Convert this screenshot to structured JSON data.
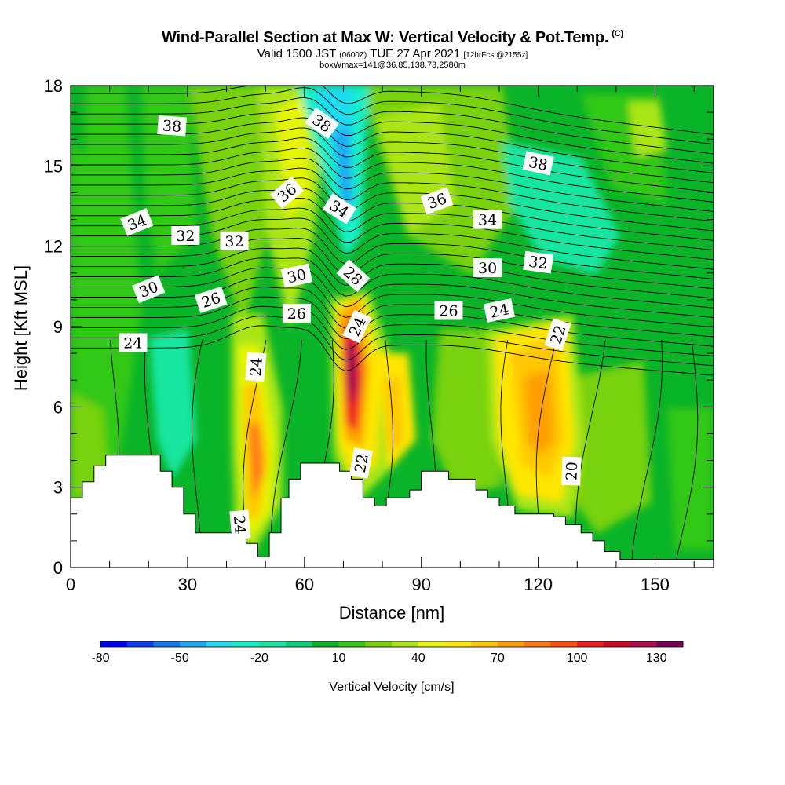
{
  "header": {
    "title": "Wind-Parallel Section at Max W: Vertical Velocity & Pot.Temp.",
    "copyright": "(C)",
    "valid_prefix": "Valid 1500 JST",
    "valid_utc": "(0600Z)",
    "valid_date": "TUE 27 Apr 2021",
    "forecast": "[12hrFcst@2155z]",
    "box_info": "boxWmax=141@36.85,138.73,2580m"
  },
  "chart_data": {
    "type": "heatmap",
    "xlabel": "Distance [nm]",
    "ylabel": "Height [Kft MSL]",
    "xlim": [
      0,
      165
    ],
    "ylim": [
      0,
      18
    ],
    "xticks": [
      0,
      30,
      60,
      90,
      120,
      150
    ],
    "yticks": [
      0,
      3,
      6,
      9,
      12,
      15,
      18
    ],
    "colorbar": {
      "label": "Vertical Velocity [cm/s]",
      "tick_labels": [
        "-80",
        "-50",
        "-20",
        "10",
        "40",
        "70",
        "100",
        "130"
      ],
      "tick_values": [
        -80,
        -50,
        -20,
        10,
        40,
        70,
        100,
        130
      ],
      "levels": [
        -80,
        -70,
        -60,
        -50,
        -40,
        -30,
        -20,
        -10,
        0,
        10,
        20,
        30,
        40,
        50,
        60,
        70,
        80,
        90,
        100,
        110,
        120,
        130,
        140
      ],
      "colors": [
        "#0000ff",
        "#0a3cf5",
        "#1478f0",
        "#1eaaf5",
        "#1edcf0",
        "#14f0c8",
        "#14e6a0",
        "#0ad278",
        "#0ab428",
        "#32c814",
        "#78d20a",
        "#aae614",
        "#e6f500",
        "#ffe600",
        "#ffc800",
        "#ffa000",
        "#ff7814",
        "#ff5014",
        "#f01e1e",
        "#d20a28",
        "#b40a50",
        "#78005a"
      ]
    },
    "terrain_kft": [
      [
        0,
        2.6
      ],
      [
        3,
        2.6
      ],
      [
        3,
        3.2
      ],
      [
        6,
        3.2
      ],
      [
        6,
        3.8
      ],
      [
        9,
        3.8
      ],
      [
        9,
        4.2
      ],
      [
        23,
        4.2
      ],
      [
        23,
        3.6
      ],
      [
        26,
        3.6
      ],
      [
        26,
        3.0
      ],
      [
        29,
        3.0
      ],
      [
        29,
        2.0
      ],
      [
        32,
        2.0
      ],
      [
        32,
        1.3
      ],
      [
        42,
        1.3
      ],
      [
        42,
        1.1
      ],
      [
        45,
        1.1
      ],
      [
        45,
        0.9
      ],
      [
        48,
        0.9
      ],
      [
        48,
        0.4
      ],
      [
        51,
        0.4
      ],
      [
        51,
        1.3
      ],
      [
        54,
        1.3
      ],
      [
        54,
        2.6
      ],
      [
        56,
        2.6
      ],
      [
        56,
        3.3
      ],
      [
        59,
        3.3
      ],
      [
        59,
        3.9
      ],
      [
        69,
        3.9
      ],
      [
        69,
        3.6
      ],
      [
        72,
        3.6
      ],
      [
        72,
        3.3
      ],
      [
        75,
        3.3
      ],
      [
        75,
        2.6
      ],
      [
        78,
        2.6
      ],
      [
        78,
        2.3
      ],
      [
        81,
        2.3
      ],
      [
        81,
        2.6
      ],
      [
        87,
        2.6
      ],
      [
        87,
        2.9
      ],
      [
        90,
        2.9
      ],
      [
        90,
        3.6
      ],
      [
        97,
        3.6
      ],
      [
        97,
        3.3
      ],
      [
        104,
        3.3
      ],
      [
        104,
        2.9
      ],
      [
        107,
        2.9
      ],
      [
        107,
        2.6
      ],
      [
        110,
        2.6
      ],
      [
        110,
        2.3
      ],
      [
        114,
        2.3
      ],
      [
        114,
        2.0
      ],
      [
        124,
        2.0
      ],
      [
        124,
        1.9
      ],
      [
        127,
        1.9
      ],
      [
        127,
        1.6
      ],
      [
        131,
        1.6
      ],
      [
        131,
        1.3
      ],
      [
        134,
        1.3
      ],
      [
        134,
        1.0
      ],
      [
        137,
        1.0
      ],
      [
        137,
        0.6
      ],
      [
        141,
        0.6
      ],
      [
        141,
        0.3
      ],
      [
        165,
        0.3
      ]
    ],
    "theta_contour_labels": [
      {
        "value": "38",
        "x": 26,
        "y": 16.5,
        "angle": 4
      },
      {
        "value": "38",
        "x": 64.5,
        "y": 16.6,
        "angle": 35
      },
      {
        "value": "38",
        "x": 120,
        "y": 15.1,
        "angle": 12
      },
      {
        "value": "36",
        "x": 55.5,
        "y": 14.0,
        "angle": -40
      },
      {
        "value": "36",
        "x": 94,
        "y": 13.7,
        "angle": -20
      },
      {
        "value": "34",
        "x": 17,
        "y": 12.9,
        "angle": -22
      },
      {
        "value": "34",
        "x": 69,
        "y": 13.4,
        "angle": 32
      },
      {
        "value": "34",
        "x": 107,
        "y": 13.0,
        "angle": 0
      },
      {
        "value": "32",
        "x": 29.5,
        "y": 12.4,
        "angle": 0
      },
      {
        "value": "32",
        "x": 42,
        "y": 12.2,
        "angle": 0
      },
      {
        "value": "32",
        "x": 120,
        "y": 11.4,
        "angle": 8
      },
      {
        "value": "30",
        "x": 20,
        "y": 10.4,
        "angle": -22
      },
      {
        "value": "30",
        "x": 58,
        "y": 10.9,
        "angle": -12
      },
      {
        "value": "30",
        "x": 107,
        "y": 11.2,
        "angle": 0
      },
      {
        "value": "28",
        "x": 72.5,
        "y": 10.9,
        "angle": 42
      },
      {
        "value": "26",
        "x": 36,
        "y": 10.0,
        "angle": -18
      },
      {
        "value": "26",
        "x": 58,
        "y": 9.5,
        "angle": 0
      },
      {
        "value": "26",
        "x": 97,
        "y": 9.6,
        "angle": 0
      },
      {
        "value": "24",
        "x": 16,
        "y": 8.4,
        "angle": 0
      },
      {
        "value": "24",
        "x": 110,
        "y": 9.6,
        "angle": -12
      },
      {
        "value": "24",
        "x": 73.5,
        "y": 9.0,
        "angle": -65
      },
      {
        "value": "24",
        "x": 47.5,
        "y": 7.5,
        "angle": -85
      },
      {
        "value": "24",
        "x": 43.5,
        "y": 1.6,
        "angle": 85
      },
      {
        "value": "22",
        "x": 125,
        "y": 8.7,
        "angle": -72
      },
      {
        "value": "22",
        "x": 74.5,
        "y": 3.9,
        "angle": -80
      },
      {
        "value": "20",
        "x": 128.5,
        "y": 3.6,
        "angle": -88
      }
    ]
  }
}
